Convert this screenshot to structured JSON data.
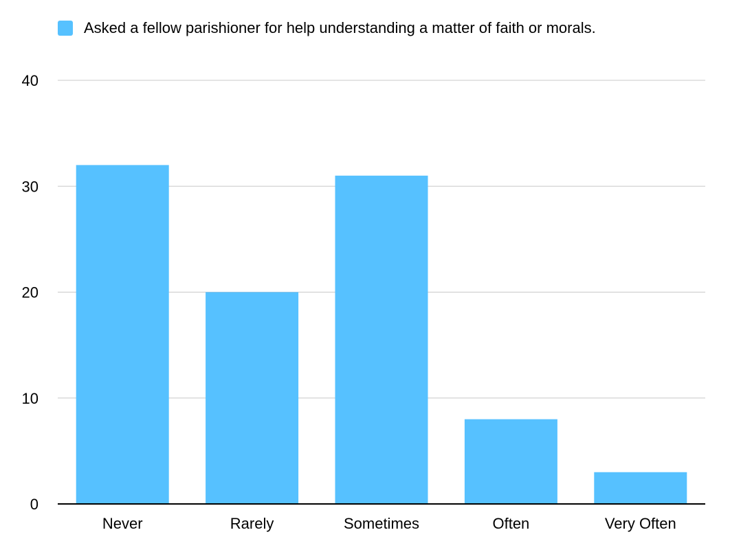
{
  "chart_data": {
    "type": "bar",
    "categories": [
      "Never",
      "Rarely",
      "Sometimes",
      "Often",
      "Very Often"
    ],
    "series": [
      {
        "name": "Asked a fellow parishioner for help understanding a matter of faith or morals.",
        "values": [
          32,
          20,
          31,
          8,
          3
        ],
        "color": "#56c1ff"
      }
    ],
    "ylim": [
      0,
      40
    ],
    "yticks": [
      0,
      10,
      20,
      30,
      40
    ],
    "grid": true,
    "legend_position": "top-left"
  }
}
